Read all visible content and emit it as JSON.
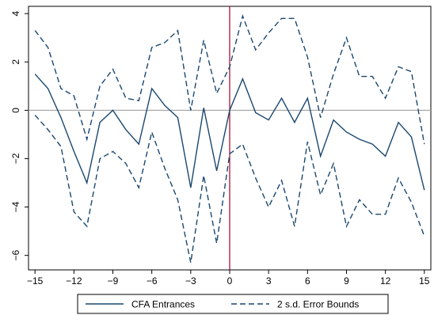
{
  "chart_data": {
    "type": "line",
    "title": "",
    "xlabel": "",
    "ylabel": "",
    "xlim": [
      -15.5,
      15.5
    ],
    "ylim": [
      -6.6,
      4.3
    ],
    "xticks": [
      -15,
      -12,
      -9,
      -6,
      -3,
      0,
      3,
      6,
      9,
      12,
      15
    ],
    "xtick_labels": [
      "−15",
      "−12",
      "−9",
      "−6",
      "−3",
      "0",
      "3",
      "6",
      "9",
      "12",
      "15"
    ],
    "yticks": [
      -6,
      -4,
      -2,
      0,
      2,
      4
    ],
    "ytick_labels": [
      "−6",
      "−4",
      "−2",
      "0",
      "2",
      "4"
    ],
    "x": [
      -15,
      -14,
      -13,
      -12,
      -11,
      -10,
      -9,
      -8,
      -7,
      -6,
      -5,
      -4,
      -3,
      -2,
      -1,
      0,
      1,
      2,
      3,
      4,
      5,
      6,
      7,
      8,
      9,
      10,
      11,
      12,
      13,
      14,
      15
    ],
    "series": [
      {
        "name": "CFA Entrances",
        "style": "solid",
        "color": "#1a476f",
        "values": [
          1.5,
          0.9,
          -0.3,
          -1.7,
          -3.0,
          -0.5,
          0.0,
          -0.8,
          -1.4,
          0.9,
          0.2,
          -0.3,
          -3.2,
          0.1,
          -2.5,
          0.0,
          1.3,
          -0.1,
          -0.4,
          0.5,
          -0.5,
          0.5,
          -1.9,
          -0.4,
          -0.9,
          -1.2,
          -1.4,
          -1.9,
          -0.5,
          -1.1,
          -3.3
        ]
      },
      {
        "name": "2 s.d. Error Bounds",
        "style": "dashed",
        "color": "#1a476f",
        "values": [
          3.3,
          2.6,
          0.9,
          0.6,
          -1.2,
          1.0,
          1.7,
          0.5,
          0.4,
          2.6,
          2.8,
          3.3,
          0.0,
          2.9,
          0.7,
          1.8,
          3.9,
          2.5,
          3.2,
          3.8,
          3.8,
          2.2,
          -0.3,
          1.5,
          3.0,
          1.4,
          1.4,
          0.5,
          1.8,
          1.6,
          -1.4
        ]
      },
      {
        "name": "2 s.d. Error Bounds",
        "style": "dashed",
        "color": "#1a476f",
        "values": [
          -0.2,
          -0.8,
          -1.5,
          -4.2,
          -4.8,
          -2.0,
          -1.7,
          -2.2,
          -3.2,
          -0.9,
          -2.4,
          -3.7,
          -6.3,
          -2.7,
          -5.5,
          -1.8,
          -1.4,
          -2.8,
          -4.0,
          -2.9,
          -4.8,
          -1.3,
          -3.5,
          -2.2,
          -4.8,
          -3.7,
          -4.3,
          -4.3,
          -2.8,
          -3.8,
          -5.2
        ]
      }
    ],
    "reference_lines": [
      {
        "axis": "y",
        "value": 0,
        "color": "#aaaaaa"
      },
      {
        "axis": "x",
        "value": 0,
        "color": "#a00028"
      }
    ],
    "legend": {
      "position": "bottom",
      "items": [
        {
          "label": "CFA Entrances",
          "style": "solid"
        },
        {
          "label": "2 s.d. Error Bounds",
          "style": "dashed"
        }
      ]
    },
    "grid": false
  }
}
